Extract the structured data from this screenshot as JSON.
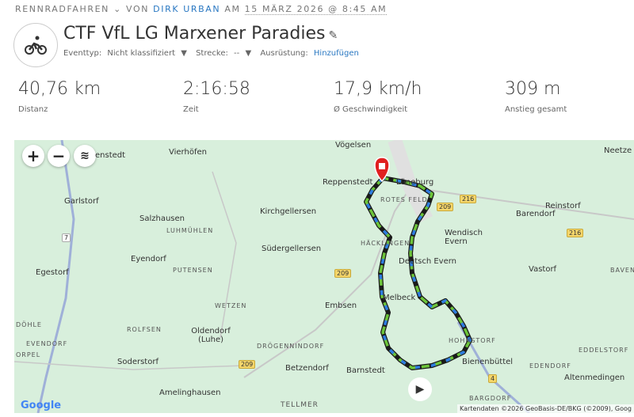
{
  "breadcrumb": {
    "sport": "RENNRADFAHREN",
    "von": "VON",
    "author": "DIRK URBAN",
    "am": "AM",
    "date": "15 MÄRZ 2026 @ 8:45 AM"
  },
  "activity": {
    "title": "CTF VfL LG Marxener Paradies",
    "icon": "bike-icon",
    "eventtyp_label": "Eventtyp:",
    "eventtyp_value": "Nicht klassifiziert",
    "strecke_label": "Strecke:",
    "strecke_value": "--",
    "ausruestung_label": "Ausrüstung:",
    "ausruestung_link": "Hinzufügen"
  },
  "stats": [
    {
      "value": "40,76 km",
      "label": "Distanz"
    },
    {
      "value": "2:16:58",
      "label": "Zeit"
    },
    {
      "value": "17,9 km/h",
      "label": "Ø Geschwindigkeit"
    },
    {
      "value": "309 m",
      "label": "Anstieg gesamt"
    }
  ],
  "map": {
    "zoom_in": "+",
    "zoom_out": "−",
    "attribution": "Kartendaten ©2026 GeoBasis-DE/BKG (©2009), Goog",
    "logo": "Google",
    "labels": [
      "Vierhöfen",
      "enstedt",
      "Garlstorf",
      "Salzhausen",
      "LUHMÜHLEN",
      "Reppenstedt",
      "Kirchgellersen",
      "Lüneburg",
      "ROTES FELD",
      "Südergellersen",
      "HÄCKLINGEN",
      "Wendisch Evern",
      "Deutsch Evern",
      "Eyendorf",
      "Egestorf",
      "PUTENSEN",
      "Barendorf",
      "Reinstorf",
      "Neetze",
      "Vastorf",
      "BAVEN",
      "WETZEN",
      "Embsen",
      "Melbeck",
      "ROLFSEN",
      "Oldendorf (Luhe)",
      "DÖHLE",
      "EVENDORF",
      "ORPEL",
      "DRÖGENNINDORF",
      "HOHNSTORF",
      "Soderstorf",
      "Betzendorf",
      "Barnstedt",
      "Bienenbüttel",
      "EDENDORF",
      "EDDELSTORF",
      "Altenmedingen",
      "Amelinghausen",
      "BARGDORF",
      "TELLMER",
      "Vögelsen"
    ],
    "roads": [
      "7",
      "209",
      "209",
      "209",
      "216",
      "216",
      "4"
    ]
  }
}
